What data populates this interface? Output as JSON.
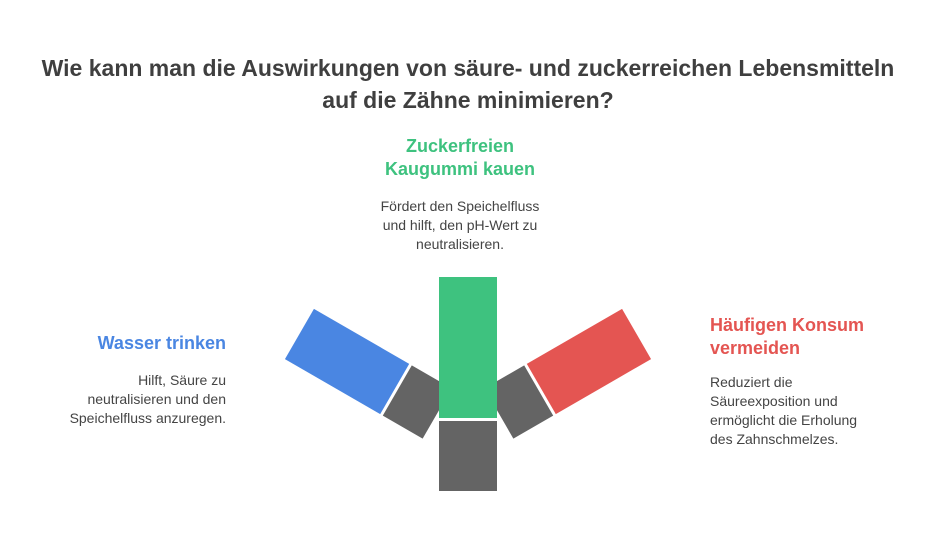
{
  "title": {
    "line1": "Wie kann man die Auswirkungen von säure- und zuckerreichen Lebensmitteln",
    "line2": "auf die Zähne minimieren?"
  },
  "options": [
    {
      "id": "center",
      "heading_lines": [
        "Zuckerfreien",
        "Kaugummi kauen"
      ],
      "desc_lines": [
        "Fördert den Speichelfluss",
        "und hilft, den pH-Wert zu",
        "neutralisieren."
      ],
      "color": "#3ec27f"
    },
    {
      "id": "left",
      "heading_lines": [
        "Wasser trinken"
      ],
      "desc_lines": [
        "Hilft, Säure zu",
        "neutralisieren und den",
        "Speichelfluss anzuregen."
      ],
      "color": "#4a86e2"
    },
    {
      "id": "right",
      "heading_lines": [
        "Häufigen Konsum",
        "vermeiden"
      ],
      "desc_lines": [
        "Reduziert die",
        "Säureexposition und",
        "ermöglicht die Erholung",
        "des Zahnschmelzes."
      ],
      "color": "#e45552"
    }
  ],
  "hub_color": "#646464",
  "text_color": "#3f3f3f",
  "desc_color": "#444444"
}
